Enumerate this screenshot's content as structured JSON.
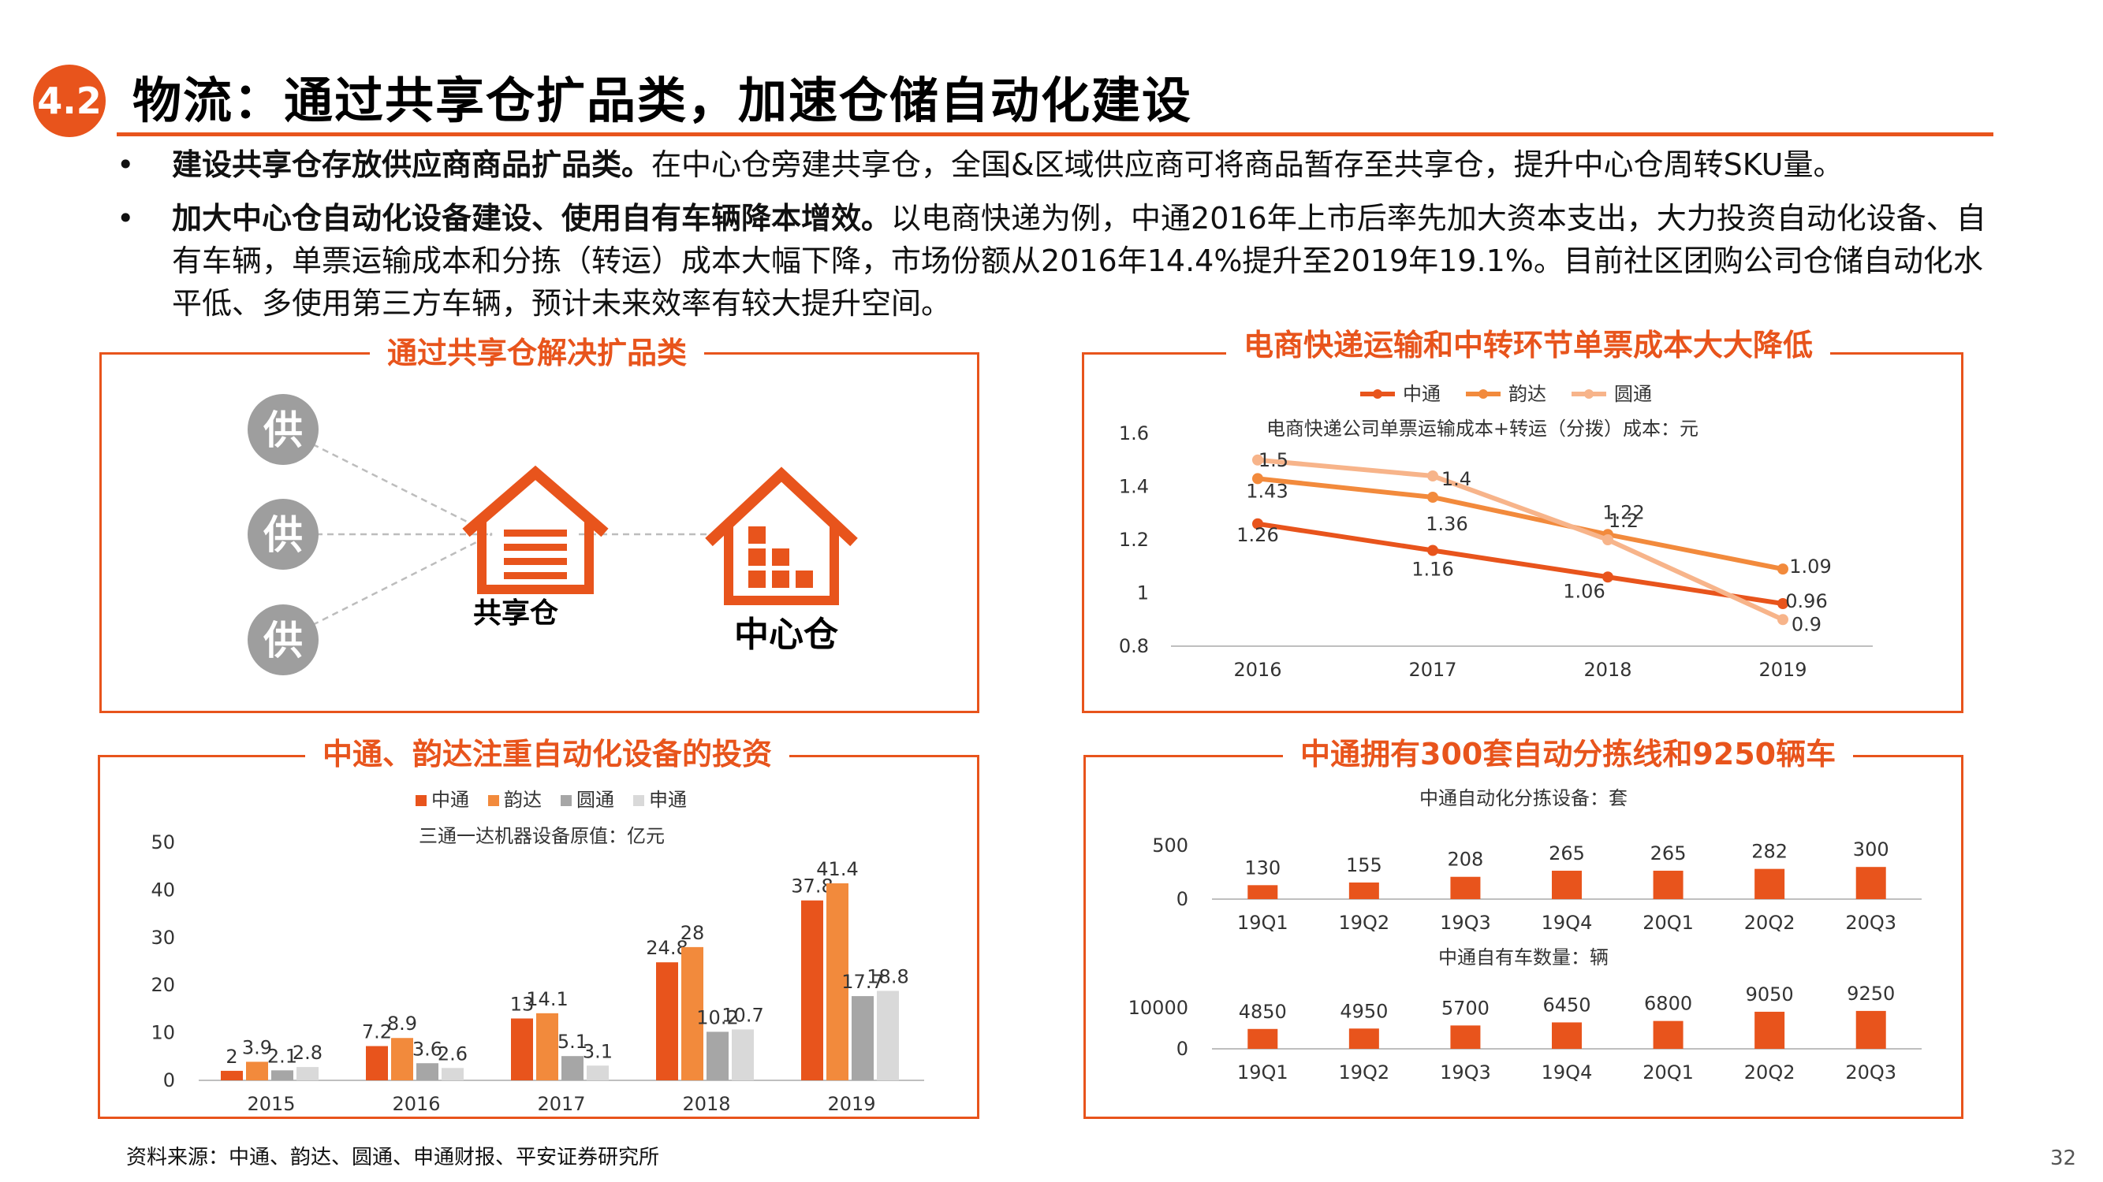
{
  "header": {
    "badge": "4.2",
    "title": "物流：通过共享仓扩品类，加速仓储自动化建设"
  },
  "bullets": [
    {
      "bold": "建设共享仓存放供应商商品扩品类。",
      "text": "在中心仓旁建共享仓，全国&区域供应商可将商品暂存至共享仓，提升中心仓周转SKU量。"
    },
    {
      "bold": "加大中心仓自动化设备建设、使用自有车辆降本增效。",
      "text": "以电商快递为例，中通2016年上市后率先加大资本支出，大力投资自动化设备、自有车辆，单票运输成本和分拣（转运）成本大幅下降，市场份额从2016年14.4%提升至2019年19.1%。目前社区团购公司仓储自动化水平低、多使用第三方车辆，预计未来效率有较大提升空间。"
    }
  ],
  "diagram": {
    "title": "通过共享仓解决扩品类",
    "supplier_label": "供",
    "shared_label": "共享仓",
    "center_label": "中心仓",
    "colors": {
      "accent": "#e8541c",
      "supplier": "#9e9e9e"
    }
  },
  "chart1": {
    "panel_title": "电商快递运输和中转环节单票成本大大降低",
    "chart_data": {
      "type": "line",
      "title": "电商快递公司单票运输成本+转运（分拨）成本：元",
      "x": [
        "2016",
        "2017",
        "2018",
        "2019"
      ],
      "ylim": [
        0.8,
        1.6
      ],
      "yticks": [
        "0.8",
        "1",
        "1.2",
        "1.4",
        "1.6"
      ],
      "legend_position": "top",
      "series": [
        {
          "name": "中通",
          "color": "#e8541c",
          "values": [
            1.26,
            1.16,
            1.06,
            0.96
          ],
          "labels": [
            "1.26",
            "1.16",
            "1.06",
            "0.96"
          ]
        },
        {
          "name": "韵达",
          "color": "#f28a3c",
          "values": [
            1.43,
            1.36,
            1.22,
            1.09
          ],
          "labels": [
            "1.43",
            "1.36",
            "1.22",
            "1.09"
          ]
        },
        {
          "name": "圆通",
          "color": "#f7b48a",
          "values": [
            1.5,
            1.44,
            1.2,
            0.9
          ],
          "labels": [
            "1.5",
            "1.4",
            "1.2",
            "0.9"
          ]
        }
      ]
    }
  },
  "chart2": {
    "panel_title": "中通、韵达注重自动化设备的投资",
    "chart_data": {
      "type": "bar",
      "title": "三通一达机器设备原值：亿元",
      "categories": [
        "2015",
        "2016",
        "2017",
        "2018",
        "2019"
      ],
      "ylim": [
        0,
        50
      ],
      "yticks": [
        "0",
        "10",
        "20",
        "30",
        "40",
        "50"
      ],
      "legend_position": "top",
      "series": [
        {
          "name": "中通",
          "color": "#e8541c",
          "values": [
            2,
            7.2,
            13,
            24.8,
            37.8
          ],
          "labels": [
            "2",
            "7.2",
            "13",
            "24.8",
            "37.8"
          ]
        },
        {
          "name": "韵达",
          "color": "#f28a3c",
          "values": [
            3.9,
            8.9,
            14.1,
            28,
            41.4
          ],
          "labels": [
            "3.9",
            "8.9",
            "14.1",
            "28",
            "41.4"
          ]
        },
        {
          "name": "圆通",
          "color": "#a6a6a6",
          "values": [
            2.1,
            3.6,
            5.1,
            10.2,
            17.7
          ],
          "labels": [
            "2.1",
            "3.6",
            "5.1",
            "10.2",
            "17.7"
          ]
        },
        {
          "name": "申通",
          "color": "#d9d9d9",
          "values": [
            2.8,
            2.6,
            3.1,
            10.7,
            18.8
          ],
          "labels": [
            "2.8",
            "2.6",
            "3.1",
            "10.7",
            "18.8"
          ]
        }
      ]
    }
  },
  "chart3": {
    "panel_title": "中通拥有300套自动分拣线和9250辆车",
    "chart_data": [
      {
        "type": "bar",
        "title": "中通自动化分拣设备：套",
        "categories": [
          "19Q1",
          "19Q2",
          "19Q3",
          "19Q4",
          "20Q1",
          "20Q2",
          "20Q3"
        ],
        "values": [
          130,
          155,
          208,
          265,
          265,
          282,
          300
        ],
        "labels": [
          "130",
          "155",
          "208",
          "265",
          "265",
          "282",
          "300"
        ],
        "ylim": [
          0,
          500
        ],
        "yticks": [
          "0",
          "500"
        ],
        "color": "#e8541c"
      },
      {
        "type": "bar",
        "title": "中通自有车数量：辆",
        "categories": [
          "19Q1",
          "19Q2",
          "19Q3",
          "19Q4",
          "20Q1",
          "20Q2",
          "20Q3"
        ],
        "values": [
          4850,
          4950,
          5700,
          6450,
          6800,
          9050,
          9250
        ],
        "labels": [
          "4850",
          "4950",
          "5700",
          "6450",
          "6800",
          "9050",
          "9250"
        ],
        "ylim": [
          0,
          10000
        ],
        "yticks": [
          "0",
          "10000"
        ],
        "color": "#e8541c"
      }
    ]
  },
  "footer": {
    "source": "资料来源：中通、韵达、圆通、申通财报、平安证券研究所",
    "page": "32"
  }
}
